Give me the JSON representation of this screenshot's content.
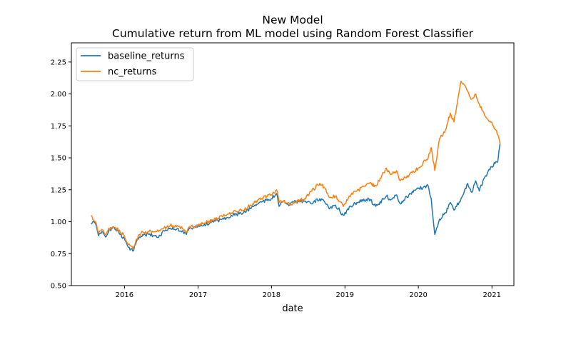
{
  "chart_data": {
    "type": "line",
    "title": "New Model",
    "subtitle": "Cumulative return from ML model using Random Forest Classifier",
    "xlabel": "date",
    "ylabel": "",
    "xlim": [
      "2015-04-12",
      "2021-04-20"
    ],
    "ylim": [
      0.5,
      2.4
    ],
    "xticks": [
      "2016",
      "2017",
      "2018",
      "2019",
      "2020",
      "2021"
    ],
    "yticks": [
      "0.50",
      "0.75",
      "1.00",
      "1.25",
      "1.50",
      "1.75",
      "2.00",
      "2.25"
    ],
    "grid": false,
    "legend_position": "top-left",
    "series": [
      {
        "name": "baseline_returns",
        "color": "#1f77b4",
        "points": [
          [
            "2015-07-20",
            0.98
          ],
          [
            "2015-08-01",
            1.0
          ],
          [
            "2015-08-15",
            0.96
          ],
          [
            "2015-08-25",
            0.89
          ],
          [
            "2015-09-10",
            0.92
          ],
          [
            "2015-09-29",
            0.88
          ],
          [
            "2015-10-15",
            0.93
          ],
          [
            "2015-11-03",
            0.95
          ],
          [
            "2015-11-20",
            0.94
          ],
          [
            "2015-12-10",
            0.9
          ],
          [
            "2015-12-31",
            0.87
          ],
          [
            "2016-01-20",
            0.8
          ],
          [
            "2016-02-11",
            0.77
          ],
          [
            "2016-02-25",
            0.82
          ],
          [
            "2016-03-15",
            0.88
          ],
          [
            "2016-04-01",
            0.9
          ],
          [
            "2016-05-01",
            0.9
          ],
          [
            "2016-06-01",
            0.89
          ],
          [
            "2016-06-27",
            0.89
          ],
          [
            "2016-07-15",
            0.93
          ],
          [
            "2016-08-15",
            0.95
          ],
          [
            "2016-09-15",
            0.94
          ],
          [
            "2016-10-15",
            0.93
          ],
          [
            "2016-11-04",
            0.9
          ],
          [
            "2016-11-20",
            0.95
          ],
          [
            "2016-12-31",
            0.96
          ],
          [
            "2017-02-01",
            0.98
          ],
          [
            "2017-03-15",
            1.0
          ],
          [
            "2017-05-01",
            1.02
          ],
          [
            "2017-06-15",
            1.05
          ],
          [
            "2017-08-15",
            1.07
          ],
          [
            "2017-09-30",
            1.12
          ],
          [
            "2017-11-01",
            1.15
          ],
          [
            "2017-12-31",
            1.18
          ],
          [
            "2018-01-26",
            1.22
          ],
          [
            "2018-02-08",
            1.12
          ],
          [
            "2018-03-01",
            1.16
          ],
          [
            "2018-04-01",
            1.13
          ],
          [
            "2018-05-01",
            1.16
          ],
          [
            "2018-06-15",
            1.16
          ],
          [
            "2018-07-20",
            1.14
          ],
          [
            "2018-08-29",
            1.18
          ],
          [
            "2018-09-20",
            1.16
          ],
          [
            "2018-10-15",
            1.1
          ],
          [
            "2018-11-15",
            1.13
          ],
          [
            "2018-12-24",
            1.05
          ],
          [
            "2019-01-31",
            1.12
          ],
          [
            "2019-03-01",
            1.15
          ],
          [
            "2019-04-30",
            1.18
          ],
          [
            "2019-06-03",
            1.12
          ],
          [
            "2019-07-26",
            1.2
          ],
          [
            "2019-08-15",
            1.17
          ],
          [
            "2019-09-15",
            1.21
          ],
          [
            "2019-10-03",
            1.14
          ],
          [
            "2019-11-15",
            1.21
          ],
          [
            "2019-12-31",
            1.26
          ],
          [
            "2020-02-19",
            1.28
          ],
          [
            "2020-03-05",
            1.18
          ],
          [
            "2020-03-23",
            0.9
          ],
          [
            "2020-04-15",
            1.02
          ],
          [
            "2020-05-15",
            1.07
          ],
          [
            "2020-06-08",
            1.15
          ],
          [
            "2020-06-26",
            1.09
          ],
          [
            "2020-07-31",
            1.18
          ],
          [
            "2020-09-02",
            1.3
          ],
          [
            "2020-09-23",
            1.23
          ],
          [
            "2020-10-12",
            1.32
          ],
          [
            "2020-10-30",
            1.24
          ],
          [
            "2020-11-30",
            1.36
          ],
          [
            "2020-12-31",
            1.43
          ],
          [
            "2021-01-20",
            1.47
          ],
          [
            "2021-01-31",
            1.48
          ],
          [
            "2021-02-10",
            1.61
          ]
        ]
      },
      {
        "name": "nc_returns",
        "color": "#ff7f0e",
        "points": [
          [
            "2015-07-20",
            1.05
          ],
          [
            "2015-08-01",
            1.01
          ],
          [
            "2015-08-15",
            0.98
          ],
          [
            "2015-08-25",
            0.91
          ],
          [
            "2015-09-10",
            0.94
          ],
          [
            "2015-09-29",
            0.9
          ],
          [
            "2015-10-15",
            0.95
          ],
          [
            "2015-11-03",
            0.96
          ],
          [
            "2015-11-20",
            0.95
          ],
          [
            "2015-12-10",
            0.92
          ],
          [
            "2015-12-31",
            0.89
          ],
          [
            "2016-01-20",
            0.82
          ],
          [
            "2016-02-11",
            0.79
          ],
          [
            "2016-02-25",
            0.84
          ],
          [
            "2016-03-15",
            0.9
          ],
          [
            "2016-04-01",
            0.92
          ],
          [
            "2016-05-01",
            0.92
          ],
          [
            "2016-06-01",
            0.92
          ],
          [
            "2016-06-27",
            0.93
          ],
          [
            "2016-07-15",
            0.95
          ],
          [
            "2016-08-15",
            0.97
          ],
          [
            "2016-09-15",
            0.96
          ],
          [
            "2016-10-15",
            0.95
          ],
          [
            "2016-11-04",
            0.92
          ],
          [
            "2016-11-20",
            0.96
          ],
          [
            "2016-12-31",
            0.97
          ],
          [
            "2017-02-01",
            0.99
          ],
          [
            "2017-03-15",
            1.01
          ],
          [
            "2017-05-01",
            1.04
          ],
          [
            "2017-06-15",
            1.07
          ],
          [
            "2017-08-15",
            1.09
          ],
          [
            "2017-09-30",
            1.14
          ],
          [
            "2017-11-01",
            1.18
          ],
          [
            "2017-12-31",
            1.21
          ],
          [
            "2018-01-26",
            1.25
          ],
          [
            "2018-02-08",
            1.15
          ],
          [
            "2018-03-01",
            1.16
          ],
          [
            "2018-04-01",
            1.14
          ],
          [
            "2018-05-01",
            1.15
          ],
          [
            "2018-06-15",
            1.18
          ],
          [
            "2018-07-20",
            1.24
          ],
          [
            "2018-08-29",
            1.3
          ],
          [
            "2018-09-20",
            1.27
          ],
          [
            "2018-10-15",
            1.19
          ],
          [
            "2018-11-15",
            1.2
          ],
          [
            "2018-12-24",
            1.12
          ],
          [
            "2019-01-31",
            1.21
          ],
          [
            "2019-03-01",
            1.24
          ],
          [
            "2019-04-30",
            1.3
          ],
          [
            "2019-06-03",
            1.28
          ],
          [
            "2019-07-26",
            1.42
          ],
          [
            "2019-08-15",
            1.37
          ],
          [
            "2019-09-15",
            1.4
          ],
          [
            "2019-10-03",
            1.32
          ],
          [
            "2019-11-15",
            1.36
          ],
          [
            "2019-12-31",
            1.42
          ],
          [
            "2020-02-19",
            1.5
          ],
          [
            "2020-03-05",
            1.58
          ],
          [
            "2020-03-23",
            1.4
          ],
          [
            "2020-04-15",
            1.65
          ],
          [
            "2020-05-15",
            1.72
          ],
          [
            "2020-06-08",
            1.85
          ],
          [
            "2020-06-26",
            1.78
          ],
          [
            "2020-07-31",
            2.1
          ],
          [
            "2020-09-02",
            2.02
          ],
          [
            "2020-09-23",
            1.96
          ],
          [
            "2020-10-12",
            2.0
          ],
          [
            "2020-10-30",
            1.92
          ],
          [
            "2020-11-30",
            1.82
          ],
          [
            "2020-12-31",
            1.78
          ],
          [
            "2021-01-20",
            1.72
          ],
          [
            "2021-01-31",
            1.68
          ],
          [
            "2021-02-10",
            1.61
          ]
        ]
      }
    ]
  }
}
